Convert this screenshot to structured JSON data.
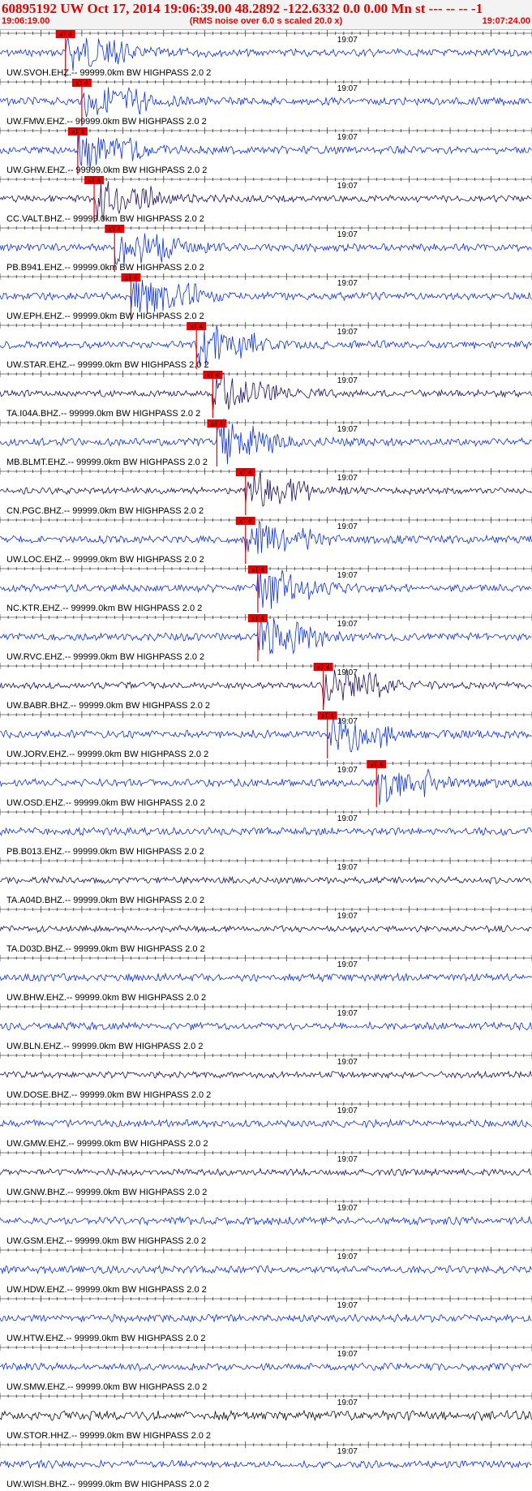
{
  "header": {
    "title": "60895192 UW Oct 17, 2014 19:06:39.00   48.2892 -122.6332  0.0 0.00 Mn st --- -- --   -1",
    "start_time": "19:06:19.00",
    "note": "(RMS noise over 6.0 s scaled 20.0 x)",
    "end_time": "19:07:24.00"
  },
  "time_axis": {
    "start_s": 0,
    "end_s": 65,
    "mid_label": "19:07",
    "mid_s": 41
  },
  "pick_label": "xT 4",
  "colors": {
    "primary": "#0b2fe3",
    "dark": "#1d0d5e",
    "black": "#111111",
    "pick": "#e60000"
  },
  "channels": [
    {
      "label": "UW.SVOH.EHZ.-- 99999.0km BW  HIGHPASS  2.0  2",
      "color": "primary",
      "pick_s": 8.0
    },
    {
      "label": "UW.FMW.EHZ.-- 99999.0km BW  HIGHPASS  2.0  2",
      "color": "primary",
      "pick_s": 10.0
    },
    {
      "label": "UW.GHW.EHZ.-- 99999.0km BW  HIGHPASS  2.0  2",
      "color": "primary",
      "pick_s": 9.5
    },
    {
      "label": "CC.VALT.BHZ.-- 99999.0km BW  HIGHPASS  2.0  2",
      "color": "dark",
      "pick_s": 11.5
    },
    {
      "label": "PB.B941.EHZ.-- 99999.0km BW  HIGHPASS  2.0  2",
      "color": "primary",
      "pick_s": 14.0
    },
    {
      "label": "UW.EPH.EHZ.-- 99999.0km BW  HIGHPASS  2.0  2",
      "color": "primary",
      "pick_s": 16.0
    },
    {
      "label": "UW.STAR.EHZ.-- 99999.0km BW  HIGHPASS  2.0  2",
      "color": "primary",
      "pick_s": 24.0
    },
    {
      "label": "TA.I04A.BHZ.-- 99999.0km BW  HIGHPASS  2.0  2",
      "color": "dark",
      "pick_s": 26.0
    },
    {
      "label": "MB.BLMT.EHZ.-- 99999.0km BW  HIGHPASS  2.0  2",
      "color": "primary",
      "pick_s": 26.5
    },
    {
      "label": "CN.PGC.BHZ.-- 99999.0km BW  HIGHPASS  2.0  2",
      "color": "dark",
      "pick_s": 30.0
    },
    {
      "label": "UW.LOC.EHZ.-- 99999.0km BW  HIGHPASS  2.0  2",
      "color": "primary",
      "pick_s": 30.0
    },
    {
      "label": "NC.KTR.EHZ.-- 99999.0km BW  HIGHPASS  2.0  2",
      "color": "primary",
      "pick_s": 31.5
    },
    {
      "label": "UW.RVC.EHZ.-- 99999.0km BW  HIGHPASS  2.0  2",
      "color": "primary",
      "pick_s": 31.5
    },
    {
      "label": "UW.BABR.BHZ.-- 99999.0km BW  HIGHPASS  2.0  2",
      "color": "dark",
      "pick_s": 39.5
    },
    {
      "label": "UW.JORV.EHZ.-- 99999.0km BW  HIGHPASS  2.0  2",
      "color": "primary",
      "pick_s": 40.0
    },
    {
      "label": "UW.OSD.EHZ.-- 99999.0km BW  HIGHPASS  2.0  2",
      "color": "primary",
      "pick_s": 46.0
    },
    {
      "label": "PB.B013.EHZ.-- 99999.0km BW  HIGHPASS  2.0  2",
      "color": "primary",
      "pick_s": null
    },
    {
      "label": "TA.A04D.BHZ.-- 99999.0km BW  HIGHPASS  2.0  2",
      "color": "dark",
      "pick_s": null
    },
    {
      "label": "TA.D03D.BHZ.-- 99999.0km BW  HIGHPASS  2.0  2",
      "color": "dark",
      "pick_s": null
    },
    {
      "label": "UW.BHW.EHZ.-- 99999.0km BW  HIGHPASS  2.0  2",
      "color": "primary",
      "pick_s": null
    },
    {
      "label": "UW.BLN.EHZ.-- 99999.0km BW  HIGHPASS  2.0  2",
      "color": "primary",
      "pick_s": null
    },
    {
      "label": "UW.DOSE.BHZ.-- 99999.0km BW  HIGHPASS  2.0  2",
      "color": "dark",
      "pick_s": null
    },
    {
      "label": "UW.GMW.EHZ.-- 99999.0km BW  HIGHPASS  2.0  2",
      "color": "primary",
      "pick_s": null
    },
    {
      "label": "UW.GNW.BHZ.-- 99999.0km BW  HIGHPASS  2.0  2",
      "color": "dark",
      "pick_s": null
    },
    {
      "label": "UW.GSM.EHZ.-- 99999.0km BW  HIGHPASS  2.0  2",
      "color": "primary",
      "pick_s": null
    },
    {
      "label": "UW.HDW.EHZ.-- 99999.0km BW  HIGHPASS  2.0  2",
      "color": "primary",
      "pick_s": null
    },
    {
      "label": "UW.HTW.EHZ.-- 99999.0km BW  HIGHPASS  2.0  2",
      "color": "primary",
      "pick_s": null
    },
    {
      "label": "UW.SMW.EHZ.-- 99999.0km BW  HIGHPASS  2.0  2",
      "color": "primary",
      "pick_s": null
    },
    {
      "label": "UW.STOR.HHZ.-- 99999.0km BW  HIGHPASS  2.0  2",
      "color": "black",
      "pick_s": null
    },
    {
      "label": "UW.WISH.BHZ.-- 99999.0km BW  HIGHPASS  2.0  2",
      "color": "primary",
      "pick_s": null
    }
  ]
}
